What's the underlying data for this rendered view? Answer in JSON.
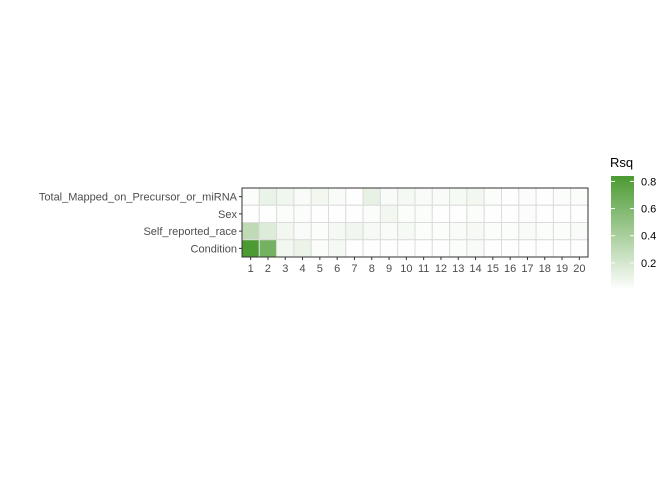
{
  "chart_data": {
    "type": "heatmap",
    "x": [
      "1",
      "2",
      "3",
      "4",
      "5",
      "6",
      "7",
      "8",
      "9",
      "10",
      "11",
      "12",
      "13",
      "14",
      "15",
      "16",
      "17",
      "18",
      "19",
      "20"
    ],
    "y": [
      "Total_Mapped_on_Precursor_or_miRNA",
      "Sex",
      "Self_reported_race",
      "Condition"
    ],
    "values": [
      [
        0.02,
        0.1,
        0.07,
        0.03,
        0.06,
        0.03,
        0.01,
        0.11,
        0.03,
        0.05,
        0.03,
        0.03,
        0.04,
        0.06,
        0.02,
        0.01,
        0.02,
        0.01,
        0.02,
        0.02
      ],
      [
        0.01,
        0.01,
        0.02,
        0.02,
        0.01,
        0.01,
        0.01,
        0.02,
        0.06,
        0.02,
        0.02,
        0.01,
        0.01,
        0.02,
        0.01,
        0.01,
        0.02,
        0.01,
        0.01,
        0.01
      ],
      [
        0.3,
        0.16,
        0.06,
        0.03,
        0.02,
        0.05,
        0.07,
        0.04,
        0.03,
        0.04,
        0.02,
        0.02,
        0.03,
        0.04,
        0.02,
        0.02,
        0.03,
        0.02,
        0.02,
        0.03
      ],
      [
        0.84,
        0.65,
        0.06,
        0.09,
        0.02,
        0.05,
        0.01,
        0.01,
        0.01,
        0.01,
        0.01,
        0.01,
        0.02,
        0.03,
        0.01,
        0.01,
        0.01,
        0.01,
        0.01,
        0.01
      ]
    ],
    "legend": {
      "title": "Rsq",
      "ticks": [
        {
          "value": 0.8,
          "label": "0.8"
        },
        {
          "value": 0.6,
          "label": "0.6"
        },
        {
          "value": 0.4,
          "label": "0.4"
        },
        {
          "value": 0.2,
          "label": "0.2"
        }
      ],
      "range": [
        0,
        0.84
      ],
      "low_color": "#ffffff",
      "high_color": "#4b9a32"
    },
    "grid": true
  }
}
